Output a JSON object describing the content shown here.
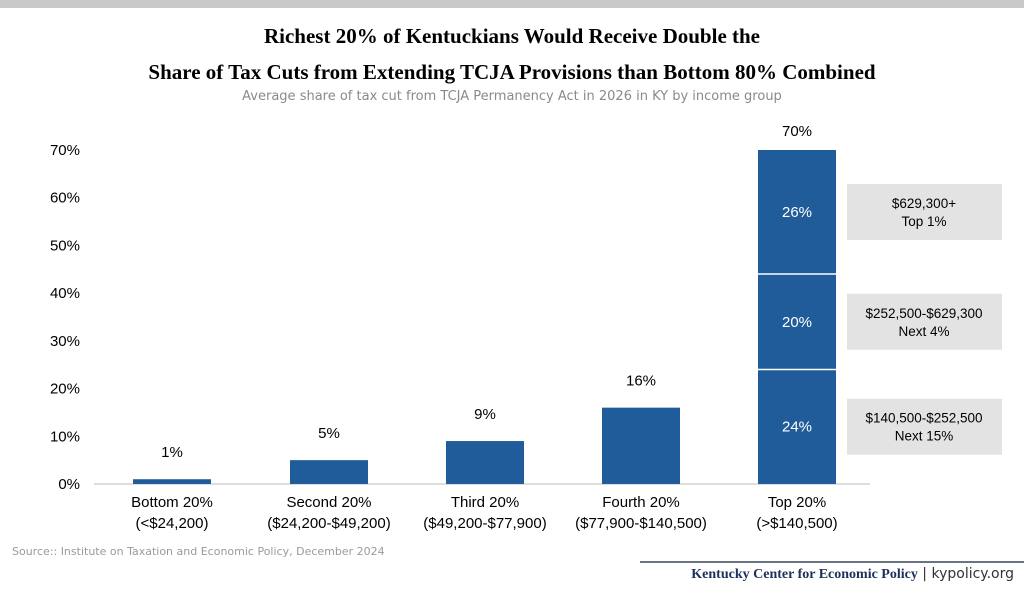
{
  "header": {
    "title_line1": "Richest 20% of Kentuckians Would Receive Double the",
    "title_line2": "Share of Tax Cuts from Extending TCJA Provisions than Bottom 80% Combined",
    "subtitle": "Average share of tax cut from TCJA Permanency Act in 2026 in KY by income group"
  },
  "chart_data": {
    "type": "bar",
    "title": "Richest 20% of Kentuckians Would Receive Double the Share of Tax Cuts from Extending TCJA Provisions than Bottom 80% Combined",
    "subtitle": "Average share of tax cut from TCJA Permanency Act in 2026 in KY by income group",
    "ylim": [
      0,
      70
    ],
    "yticks": [
      0,
      10,
      20,
      30,
      40,
      50,
      60,
      70
    ],
    "ytick_labels": [
      "0%",
      "10%",
      "20%",
      "30%",
      "40%",
      "50%",
      "60%",
      "70%"
    ],
    "grid": false,
    "bar_color": "#1f5c99",
    "categories": [
      {
        "line1": "Bottom 20%",
        "line2": "(<$24,200)"
      },
      {
        "line1": "Second 20%",
        "line2": "($24,200-$49,200)"
      },
      {
        "line1": "Third 20%",
        "line2": "($49,200-$77,900)"
      },
      {
        "line1": "Fourth 20%",
        "line2": "($77,900-$140,500)"
      },
      {
        "line1": "Top 20%",
        "line2": "(>$140,500)"
      }
    ],
    "values": [
      1,
      5,
      9,
      16,
      70
    ],
    "value_labels": [
      "1%",
      "5%",
      "9%",
      "16%",
      "70%"
    ],
    "top_breakdown": [
      {
        "value": 24,
        "label": "24%",
        "annotation_line1": "$140,500-$252,500",
        "annotation_line2": "Next 15%"
      },
      {
        "value": 20,
        "label": "20%",
        "annotation_line1": "$252,500-$629,300",
        "annotation_line2": "Next 4%"
      },
      {
        "value": 26,
        "label": "26%",
        "annotation_line1": "$629,300+",
        "annotation_line2": "Top 1%"
      }
    ]
  },
  "footer": {
    "source": "Source:: Institute on Taxation and Economic Policy, December 2024",
    "org": "Kentucky Center for Economic Policy",
    "separator": " | ",
    "site": "kypolicy.org"
  }
}
